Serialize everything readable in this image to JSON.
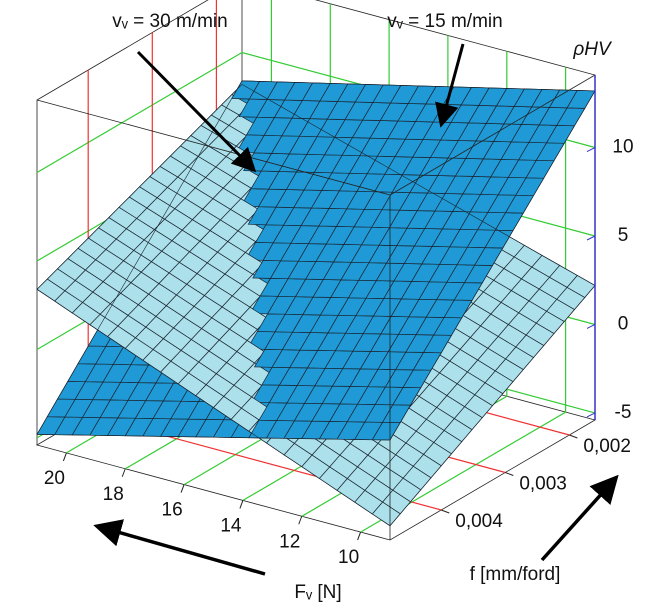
{
  "chart_data": {
    "type": "surface3d",
    "annotations": [
      "vᵥ = 30 m/min",
      "vᵥ = 15 m/min"
    ],
    "x_label": "Fᵥ [N]",
    "y_label": "f [mm/ford]",
    "z_label": "ρHV",
    "xlim": [
      21,
      9
    ],
    "ylim": [
      0.0048,
      0.0016
    ],
    "zlim": [
      -5.4,
      14.1
    ],
    "xticks": [
      20,
      18,
      16,
      14,
      12,
      10
    ],
    "yticks": [
      {
        "value": 0.002,
        "label": "0,002"
      },
      {
        "value": 0.003,
        "label": "0,003"
      },
      {
        "value": 0.004,
        "label": "0,004"
      }
    ],
    "zticks": [
      -5,
      0,
      5,
      10
    ],
    "grid": true,
    "surfaces": [
      {
        "color": "#1f9ad6",
        "z": [
          [
            -4.8,
            8.4
          ],
          [
            0.25,
            13.2
          ]
        ]
      },
      {
        "color": "#ace0ea",
        "z": [
          [
            3.4,
            8.2
          ],
          [
            -4.6,
            2.2
          ]
        ]
      }
    ]
  }
}
